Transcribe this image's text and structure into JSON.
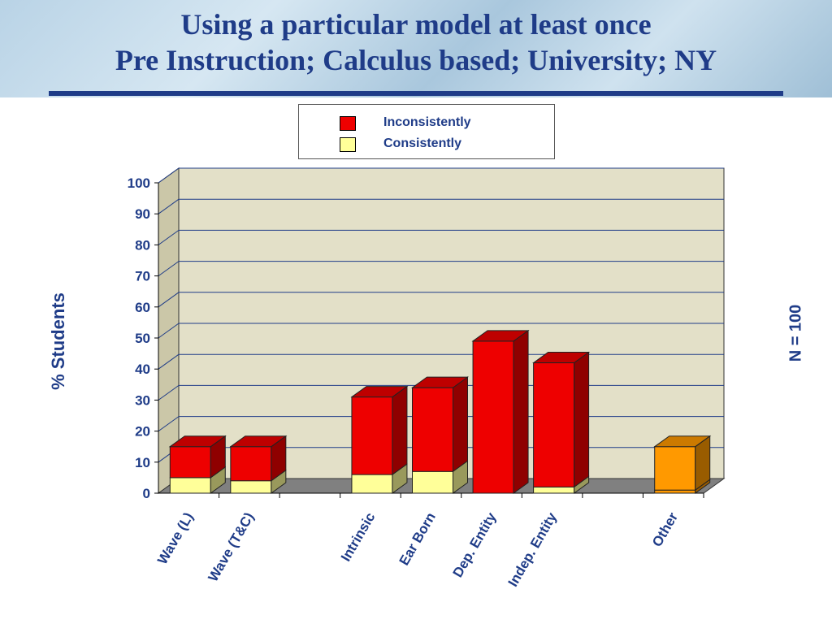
{
  "title": {
    "line1": "Using a particular model at least once",
    "line2": "Pre Instruction; Calculus based; University; NY"
  },
  "note": "N = 100",
  "colors": {
    "inconsistently": "#ee0000",
    "consistently": "#ffff99",
    "other": "#ff9900",
    "wall": "#e3e0c8",
    "floor": "#808080",
    "title": "#1f3c88"
  },
  "chart_data": {
    "type": "bar",
    "stacked": true,
    "three_d": true,
    "ylabel": "% Students",
    "xlabel": "",
    "ylim": [
      0,
      100
    ],
    "yticks": [
      0,
      10,
      20,
      30,
      40,
      50,
      60,
      70,
      80,
      90,
      100
    ],
    "grid": true,
    "legend_position": "top-center",
    "categories": [
      "Wave (L)",
      "Wave (T&C)",
      "",
      "Intrinsic",
      "Ear Born",
      "Dep. Entity",
      "Indep. Entity",
      "",
      "Other"
    ],
    "series": [
      {
        "name": "Consistently",
        "values": [
          5,
          4,
          null,
          6,
          7,
          0,
          2,
          null,
          1
        ]
      },
      {
        "name": "Inconsistently",
        "values": [
          10,
          11,
          null,
          25,
          27,
          49,
          40,
          null,
          14
        ]
      }
    ]
  }
}
